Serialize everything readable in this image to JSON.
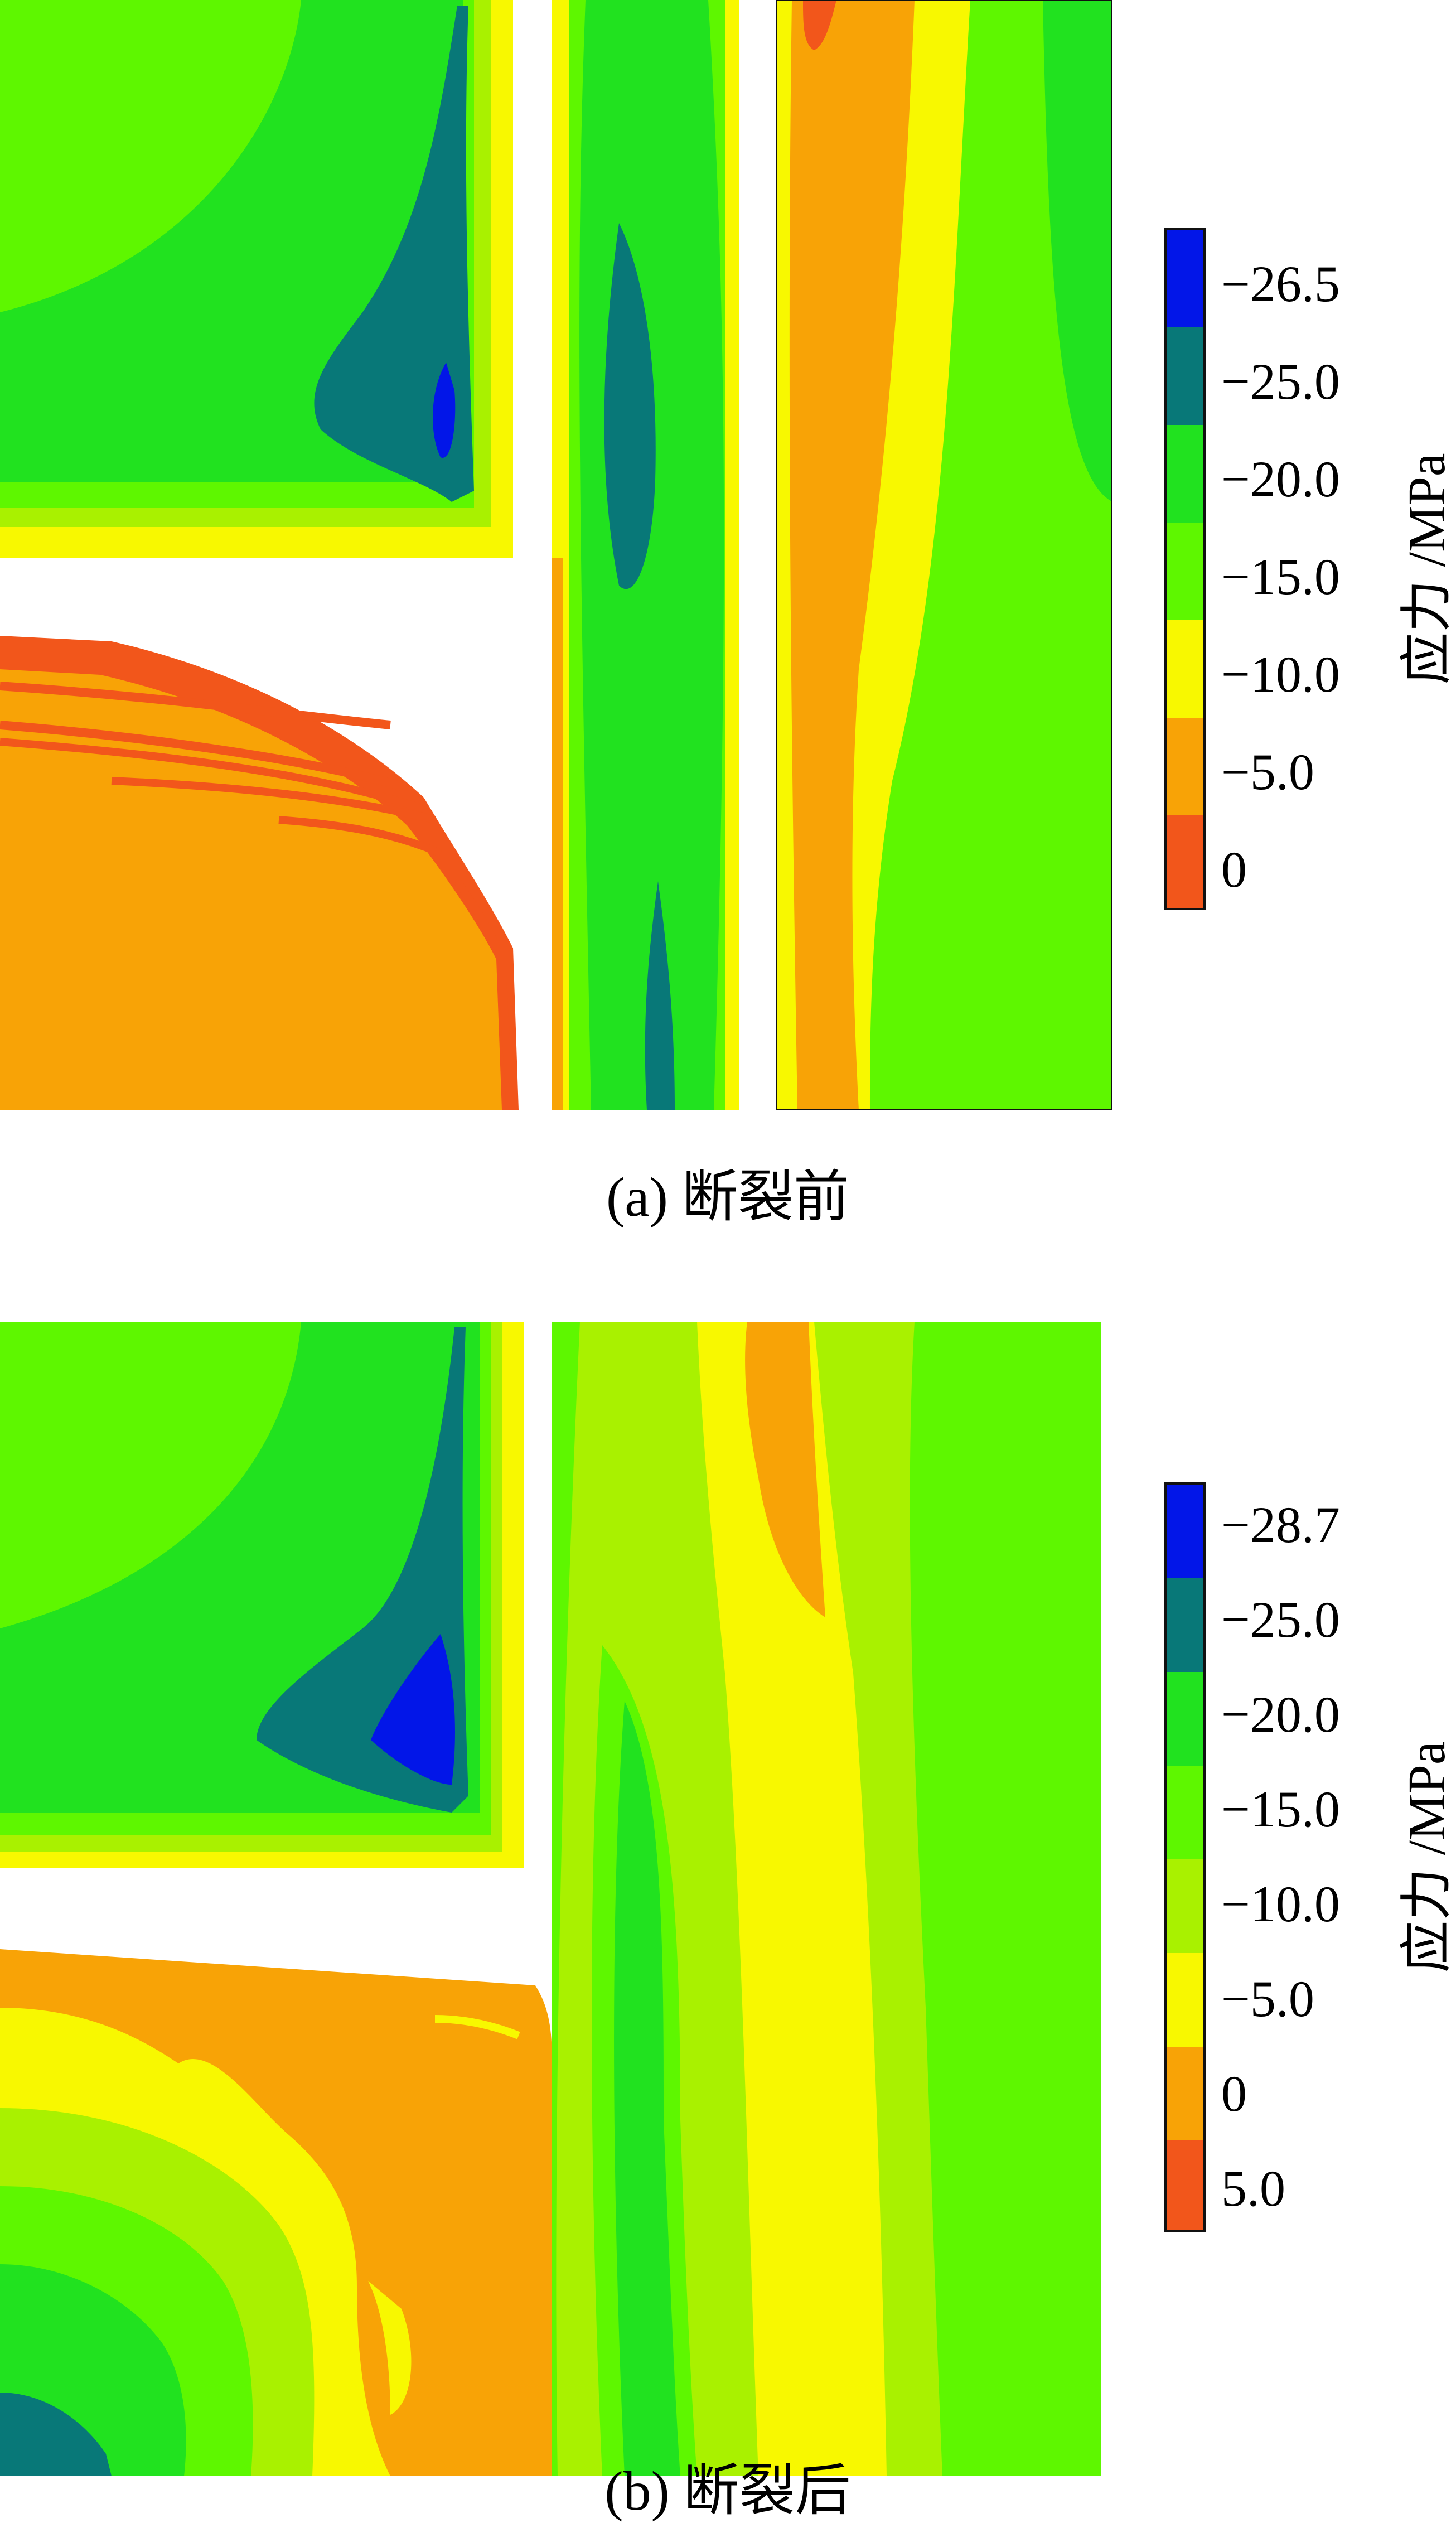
{
  "palette": {
    "red": "#f2561b",
    "orange": "#f8a306",
    "yellow": "#f8f800",
    "yellow_green": "#a9f100",
    "lime": "#5ef700",
    "green": "#21e21f",
    "teal": "#087878",
    "blue": "#0216e8"
  },
  "panels": [
    {
      "caption": "(a)  断裂前",
      "legend": {
        "unit_label": "应力 /MPa",
        "ticks": [
          "−26.5",
          "−25.0",
          "−20.0",
          "−15.0",
          "−10.0",
          "−5.0",
          "0"
        ]
      }
    },
    {
      "caption": "(b)  断裂后",
      "legend": {
        "unit_label": "应力 /MPa",
        "ticks": [
          "−28.7",
          "−25.0",
          "−20.0",
          "−15.0",
          "−10.0",
          "−5.0",
          "0",
          "5.0"
        ]
      }
    }
  ]
}
